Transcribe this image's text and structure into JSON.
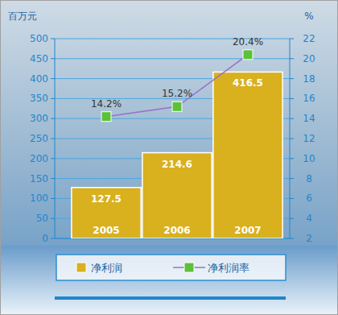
{
  "chart_data": {
    "type": "bar",
    "ylabel": "百万元",
    "y2label": "%",
    "categories": [
      "2005",
      "2006",
      "2007"
    ],
    "series": [
      {
        "name": "净利润",
        "type": "bar",
        "color": "#d9b01e",
        "values": [
          127.5,
          214.6,
          416.5
        ]
      },
      {
        "name": "净利润率",
        "type": "line",
        "axis": "y2",
        "color": "#9a6fc8",
        "marker": "square",
        "values": [
          14.2,
          15.2,
          20.4
        ],
        "value_labels": [
          "14.2%",
          "15.2%",
          "20.4%"
        ]
      }
    ],
    "ylim": [
      0,
      500
    ],
    "yticks": [
      0,
      50,
      100,
      150,
      200,
      250,
      300,
      350,
      400,
      450,
      500
    ],
    "y2lim": [
      2,
      22
    ],
    "y2ticks": [
      2,
      4,
      6,
      8,
      10,
      12,
      14,
      16,
      18,
      20,
      22
    ],
    "grid": true,
    "data_labels": true,
    "legend": "bottom"
  }
}
